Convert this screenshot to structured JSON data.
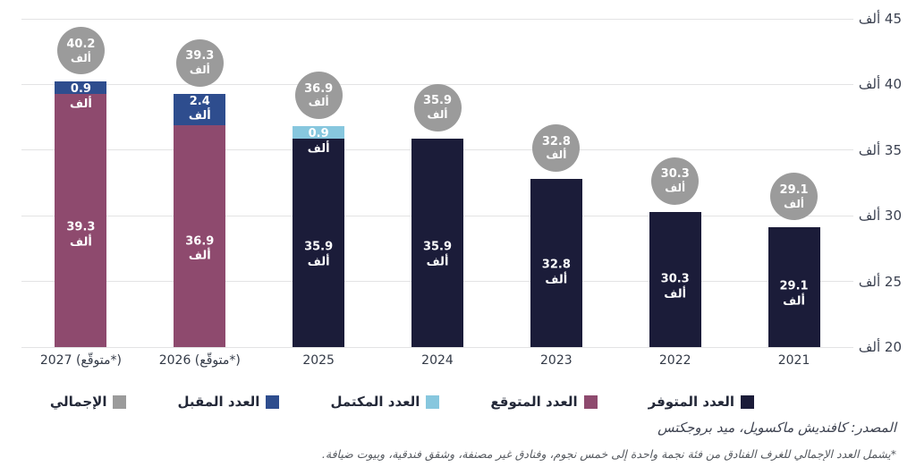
{
  "chart_data": {
    "type": "bar",
    "stacked": true,
    "rtl": true,
    "grid": true,
    "legend_position": "bottom",
    "unit": "ألف",
    "ylim": [
      20,
      45
    ],
    "yticks": [
      20,
      25,
      30,
      35,
      40,
      45
    ],
    "bars": [
      {
        "label": "2027 (متوقّع*)",
        "total": 40.2,
        "segments": [
          {
            "series": "العدد المتوقع",
            "value": 39.3
          },
          {
            "series": "العدد المقبل",
            "value": 0.9
          }
        ]
      },
      {
        "label": "2026 (متوقّع*)",
        "total": 39.3,
        "segments": [
          {
            "series": "العدد المتوقع",
            "value": 36.9
          },
          {
            "series": "العدد المقبل",
            "value": 2.4
          }
        ]
      },
      {
        "label": "2025",
        "total": 36.9,
        "segments": [
          {
            "series": "العدد المتوفر",
            "value": 35.9
          },
          {
            "series": "العدد المكتمل",
            "value": 0.9
          }
        ]
      },
      {
        "label": "2024",
        "total": 35.9,
        "segments": [
          {
            "series": "العدد المتوفر",
            "value": 35.9
          }
        ]
      },
      {
        "label": "2023",
        "total": 32.8,
        "segments": [
          {
            "series": "العدد المتوفر",
            "value": 32.8
          }
        ]
      },
      {
        "label": "2022",
        "total": 30.3,
        "segments": [
          {
            "series": "العدد المتوفر",
            "value": 30.3
          }
        ]
      },
      {
        "label": "2021",
        "total": 29.1,
        "segments": [
          {
            "series": "العدد المتوفر",
            "value": 29.1
          }
        ]
      }
    ],
    "legend": [
      {
        "label": "العدد المتوفر",
        "color": "#1b1c39"
      },
      {
        "label": "العدد المتوقع",
        "color": "#8e4a6e"
      },
      {
        "label": "العدد المكتمل",
        "color": "#87c7de"
      },
      {
        "label": "العدد المقبل",
        "color": "#2e4d8e"
      },
      {
        "label": "الإجمالي",
        "color": "#9b9b9b"
      }
    ],
    "badge_series": "الإجمالي",
    "colors": {
      "gridline": "#e3e3e4",
      "bar_value_text": "#ffffff",
      "badge_text": "#ffffff"
    }
  },
  "footer": {
    "source": "المصدر: كافنديش ماكسويل، ميد بروجكتس",
    "footnote": "*يشمل العدد الإجمالي للغرف الفنادق من فئة نجمة واحدة إلى خمس نجوم، وفنادق غير مصنفة، وشقق فندقية، وبيوت ضيافة."
  }
}
